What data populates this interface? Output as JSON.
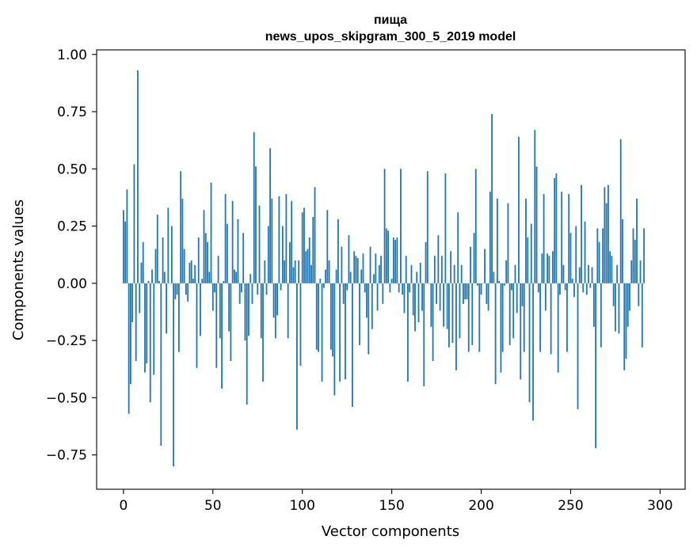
{
  "chart_data": {
    "type": "bar",
    "title": [
      "пища",
      "news_upos_skipgram_300_5_2019 model"
    ],
    "xlabel": "Vector components",
    "ylabel": "Components values",
    "xlim": [
      -15,
      314
    ],
    "ylim": [
      -0.9,
      1.02
    ],
    "xticks": [
      0,
      50,
      100,
      150,
      200,
      250,
      300
    ],
    "xtick_labels": [
      "0",
      "50",
      "100",
      "150",
      "200",
      "250",
      "300"
    ],
    "yticks": [
      1.0,
      0.75,
      0.5,
      0.25,
      0.0,
      -0.25,
      -0.5,
      -0.75
    ],
    "ytick_labels": [
      "1.00",
      "0.75",
      "0.50",
      "0.25",
      "0.00",
      "−0.25",
      "−0.50",
      "−0.75"
    ],
    "bar_color": "#1f77b4",
    "x": "0..299 (one bar per vector component)",
    "values": [
      0.32,
      0.27,
      0.41,
      -0.57,
      -0.44,
      -0.17,
      0.52,
      -0.34,
      0.93,
      -0.13,
      0.09,
      0.18,
      -0.39,
      -0.35,
      0.01,
      -0.52,
      0.06,
      -0.4,
      0.15,
      0.3,
      0.01,
      -0.71,
      0.2,
      0.05,
      -0.22,
      0.33,
      0.0,
      0.25,
      -0.8,
      -0.07,
      -0.05,
      -0.3,
      0.49,
      0.37,
      0.15,
      -0.05,
      -0.08,
      0.09,
      0.1,
      0.02,
      0.08,
      -0.37,
      0.2,
      -0.23,
      0.02,
      0.32,
      0.22,
      0.18,
      0.05,
      0.44,
      -0.12,
      -0.04,
      -0.37,
      0.12,
      -0.24,
      -0.46,
      0.01,
      0.39,
      0.26,
      -0.21,
      -0.34,
      0.36,
      0.06,
      0.05,
      0.28,
      -0.09,
      -0.04,
      0.22,
      -0.25,
      -0.53,
      -0.23,
      0.04,
      -0.09,
      0.66,
      0.51,
      -0.05,
      0.34,
      -0.24,
      -0.43,
      0.1,
      -0.05,
      0.25,
      0.59,
      0.37,
      -0.15,
      -0.24,
      -0.14,
      0.38,
      -0.03,
      0.25,
      0.1,
      0.39,
      -0.24,
      0.18,
      0.36,
      0.07,
      0.1,
      -0.64,
      0.1,
      -0.36,
      0.31,
      0.33,
      0.14,
      0.15,
      0.2,
      0.08,
      0.29,
      0.42,
      -0.29,
      -0.3,
      0.02,
      -0.43,
      -0.02,
      0.06,
      0.32,
      0.1,
      -0.29,
      -0.32,
      -0.49,
      0.06,
      0.28,
      -0.43,
      0.16,
      -0.09,
      -0.42,
      -0.03,
      0.21,
      0.05,
      -0.54,
      0.14,
      0.12,
      0.11,
      -0.27,
      0.06,
      0.13,
      -0.04,
      -0.15,
      -0.31,
      0.16,
      -0.2,
      0.04,
      0.13,
      -0.12,
      0.08,
      0.12,
      -0.09,
      0.5,
      0.24,
      0.23,
      -0.04,
      0.02,
      0.2,
      0.19,
      0.2,
      -0.04,
      0.5,
      -0.05,
      -0.13,
      0.12,
      -0.43,
      -0.04,
      0.08,
      -0.14,
      -0.21,
      0.05,
      -0.17,
      0.09,
      -0.12,
      -0.45,
      0.18,
      0.49,
      0.0,
      -0.19,
      -0.34,
      0.12,
      -0.09,
      0.21,
      -0.12,
      0.12,
      -0.19,
      0.48,
      -0.2,
      -0.28,
      0.14,
      -0.26,
      0.08,
      -0.38,
      0.31,
      -0.24,
      0.08,
      -0.09,
      -0.07,
      -0.07,
      -0.3,
      0.16,
      -0.27,
      0.22,
      0.5,
      -0.01,
      -0.3,
      -0.05,
      0.0,
      0.15,
      -0.09,
      -0.12,
      0.4,
      0.74,
      0.05,
      -0.44,
      0.37,
      0.01,
      -0.39,
      -0.3,
      -0.01,
      0.1,
      0.35,
      -0.27,
      -0.03,
      -0.24,
      0.08,
      -0.13,
      0.64,
      -0.42,
      -0.1,
      -0.3,
      0.37,
      0.2,
      -0.52,
      0.26,
      -0.6,
      0.67,
      0.51,
      -0.04,
      -0.3,
      0.13,
      0.39,
      -0.12,
      0.13,
      0.12,
      -0.31,
      0.14,
      0.46,
      0.48,
      -0.39,
      -0.05,
      0.4,
      0.08,
      -0.03,
      -0.3,
      0.39,
      0.22,
      0.02,
      -0.06,
      0.25,
      -0.55,
      0.07,
      0.43,
      -0.04,
      0.27,
      -0.05,
      0.08,
      -0.02,
      0.07,
      -0.19,
      -0.72,
      0.24,
      0.18,
      -0.28,
      0.24,
      0.42,
      0.35,
      0.43,
      0.14,
      0.12,
      -0.1,
      -0.21,
      0.08,
      -0.22,
      0.63,
      0.28,
      -0.38,
      -0.33,
      -0.19,
      -0.12,
      0.1,
      0.24,
      0.19,
      0.37,
      -0.1,
      0.1,
      -0.28,
      0.24
    ]
  }
}
